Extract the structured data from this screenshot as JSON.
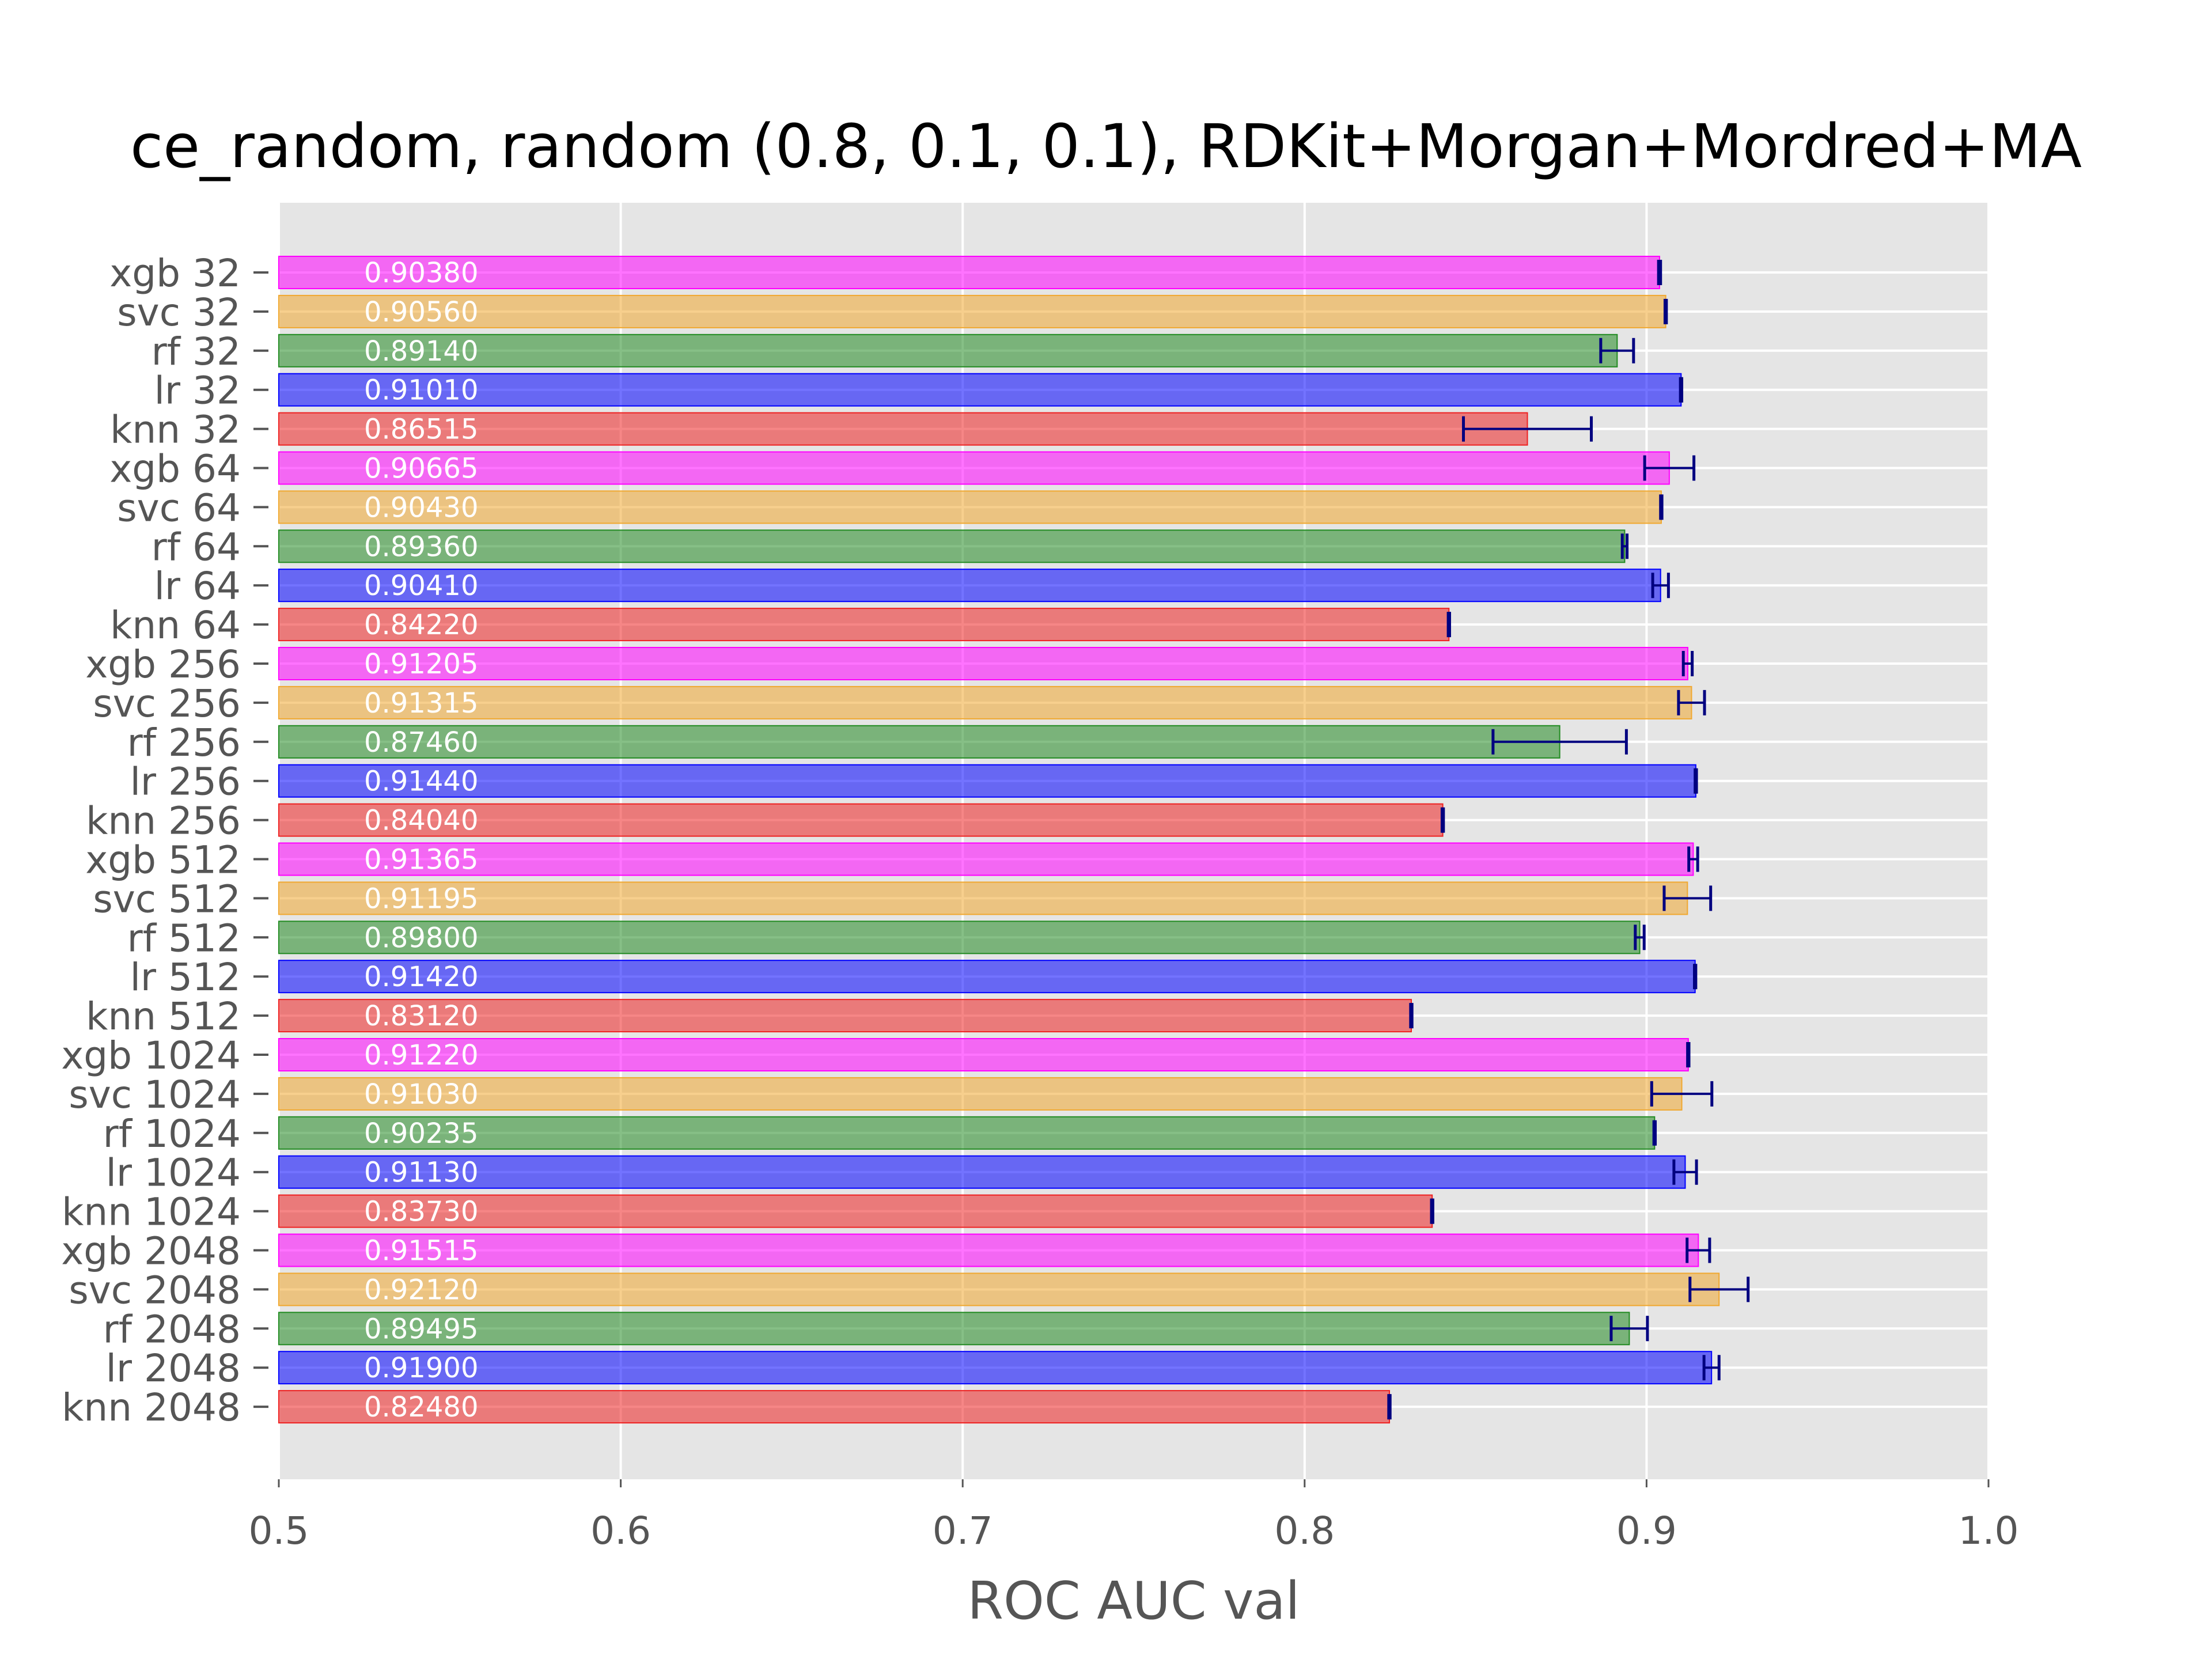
{
  "chart_data": {
    "type": "bar",
    "orientation": "horizontal",
    "title": "ce_random, random (0.8, 0.1, 0.1), RDKit+Morgan+Mordred+MA",
    "xlabel": "ROC AUC val",
    "ylabel": "",
    "xlim": [
      0.5,
      1.0
    ],
    "xticks": [
      "0.5",
      "0.6",
      "0.7",
      "0.8",
      "0.9",
      "1.0"
    ],
    "grid": true,
    "colors": {
      "xgb": "#ff00ff",
      "svc": "#f0a830",
      "rf": "#228b22",
      "lr": "#0000ff",
      "knn": "#ee2222",
      "error": "#000080",
      "background": "#e5e5e5"
    },
    "bars": [
      {
        "label": "xgb 32",
        "model": "xgb",
        "value": 0.9038,
        "text": "0.90380",
        "err": 0.0003
      },
      {
        "label": "svc 32",
        "model": "svc",
        "value": 0.9056,
        "text": "0.90560",
        "err": 0.0002
      },
      {
        "label": "rf 32",
        "model": "rf",
        "value": 0.8914,
        "text": "0.89140",
        "err": 0.0048
      },
      {
        "label": "lr 32",
        "model": "lr",
        "value": 0.9101,
        "text": "0.91010",
        "err": 0.0002
      },
      {
        "label": "knn 32",
        "model": "knn",
        "value": 0.86515,
        "text": "0.86515",
        "err": 0.0187
      },
      {
        "label": "xgb 64",
        "model": "xgb",
        "value": 0.90665,
        "text": "0.90665",
        "err": 0.0072
      },
      {
        "label": "svc 64",
        "model": "svc",
        "value": 0.9043,
        "text": "0.90430",
        "err": 0.0002
      },
      {
        "label": "rf 64",
        "model": "rf",
        "value": 0.8936,
        "text": "0.89360",
        "err": 0.0007
      },
      {
        "label": "lr 64",
        "model": "lr",
        "value": 0.9041,
        "text": "0.90410",
        "err": 0.0023
      },
      {
        "label": "knn 64",
        "model": "knn",
        "value": 0.8422,
        "text": "0.84220",
        "err": 0.0002
      },
      {
        "label": "xgb 256",
        "model": "xgb",
        "value": 0.91205,
        "text": "0.91205",
        "err": 0.0013
      },
      {
        "label": "svc 256",
        "model": "svc",
        "value": 0.91315,
        "text": "0.91315",
        "err": 0.0038
      },
      {
        "label": "rf 256",
        "model": "rf",
        "value": 0.8746,
        "text": "0.87460",
        "err": 0.0195
      },
      {
        "label": "lr 256",
        "model": "lr",
        "value": 0.9144,
        "text": "0.91440",
        "err": 0.0002
      },
      {
        "label": "knn 256",
        "model": "knn",
        "value": 0.8404,
        "text": "0.84040",
        "err": 0.0002
      },
      {
        "label": "xgb 512",
        "model": "xgb",
        "value": 0.91365,
        "text": "0.91365",
        "err": 0.0013
      },
      {
        "label": "svc 512",
        "model": "svc",
        "value": 0.91195,
        "text": "0.91195",
        "err": 0.0068
      },
      {
        "label": "rf 512",
        "model": "rf",
        "value": 0.898,
        "text": "0.89800",
        "err": 0.0013
      },
      {
        "label": "lr 512",
        "model": "lr",
        "value": 0.9142,
        "text": "0.91420",
        "err": 0.0002
      },
      {
        "label": "knn 512",
        "model": "knn",
        "value": 0.8312,
        "text": "0.83120",
        "err": 0.0002
      },
      {
        "label": "xgb 1024",
        "model": "xgb",
        "value": 0.9122,
        "text": "0.91220",
        "err": 0.0002
      },
      {
        "label": "svc 1024",
        "model": "svc",
        "value": 0.9103,
        "text": "0.91030",
        "err": 0.0088
      },
      {
        "label": "rf 1024",
        "model": "rf",
        "value": 0.90235,
        "text": "0.90235",
        "err": 0.0002
      },
      {
        "label": "lr 1024",
        "model": "lr",
        "value": 0.9113,
        "text": "0.91130",
        "err": 0.0033
      },
      {
        "label": "knn 1024",
        "model": "knn",
        "value": 0.8373,
        "text": "0.83730",
        "err": 0.0002
      },
      {
        "label": "xgb 2048",
        "model": "xgb",
        "value": 0.91515,
        "text": "0.91515",
        "err": 0.0033
      },
      {
        "label": "svc 2048",
        "model": "svc",
        "value": 0.9212,
        "text": "0.92120",
        "err": 0.0085
      },
      {
        "label": "rf 2048",
        "model": "rf",
        "value": 0.89495,
        "text": "0.89495",
        "err": 0.0053
      },
      {
        "label": "lr 2048",
        "model": "lr",
        "value": 0.919,
        "text": "0.91900",
        "err": 0.0022
      },
      {
        "label": "knn 2048",
        "model": "knn",
        "value": 0.8248,
        "text": "0.82480",
        "err": 0.0002
      }
    ]
  }
}
